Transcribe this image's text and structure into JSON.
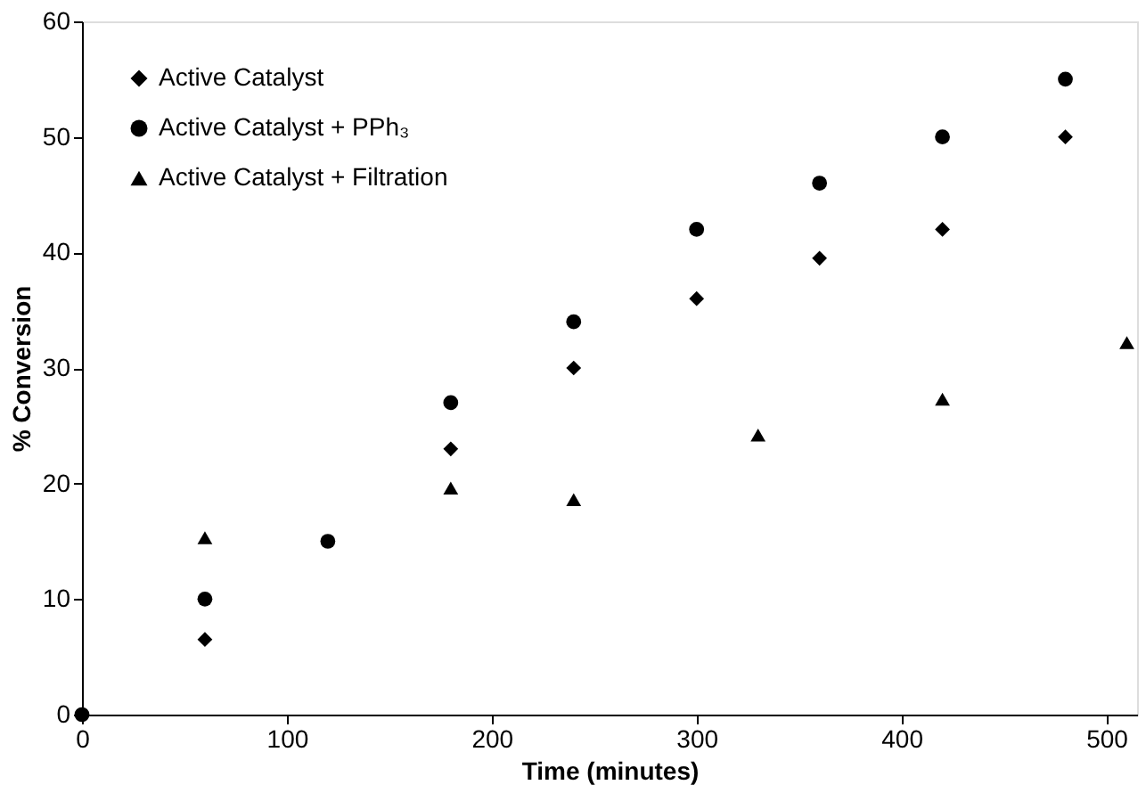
{
  "chart_data": {
    "type": "scatter",
    "xlabel": "Time (minutes)",
    "ylabel": "% Conversion",
    "xlim": [
      0,
      515
    ],
    "ylim": [
      0,
      60
    ],
    "xticks": [
      0,
      100,
      200,
      300,
      400,
      500
    ],
    "yticks": [
      0,
      10,
      20,
      30,
      40,
      50,
      60
    ],
    "grid": false,
    "legend": "top left",
    "series": [
      {
        "name": "Active Catalyst",
        "color": "#000000",
        "marker": "diamond",
        "x": [
          60,
          180,
          240,
          300,
          360,
          420,
          480
        ],
        "values": [
          6.5,
          23,
          30,
          36,
          39.5,
          42,
          50
        ]
      },
      {
        "name": "Active Catalyst + PPh₃",
        "color": "#000000",
        "marker": "circle",
        "x": [
          0,
          60,
          120,
          180,
          240,
          300,
          360,
          420,
          480
        ],
        "values": [
          0,
          10,
          15,
          27,
          34,
          42,
          46,
          50,
          55
        ]
      },
      {
        "name": "Active Catalyst + Filtration",
        "color": "#000000",
        "marker": "triangle",
        "x": [
          60,
          180,
          240,
          330,
          420,
          510
        ],
        "values": [
          15.3,
          19.6,
          18.6,
          24.2,
          27.3,
          32.2
        ]
      }
    ]
  }
}
